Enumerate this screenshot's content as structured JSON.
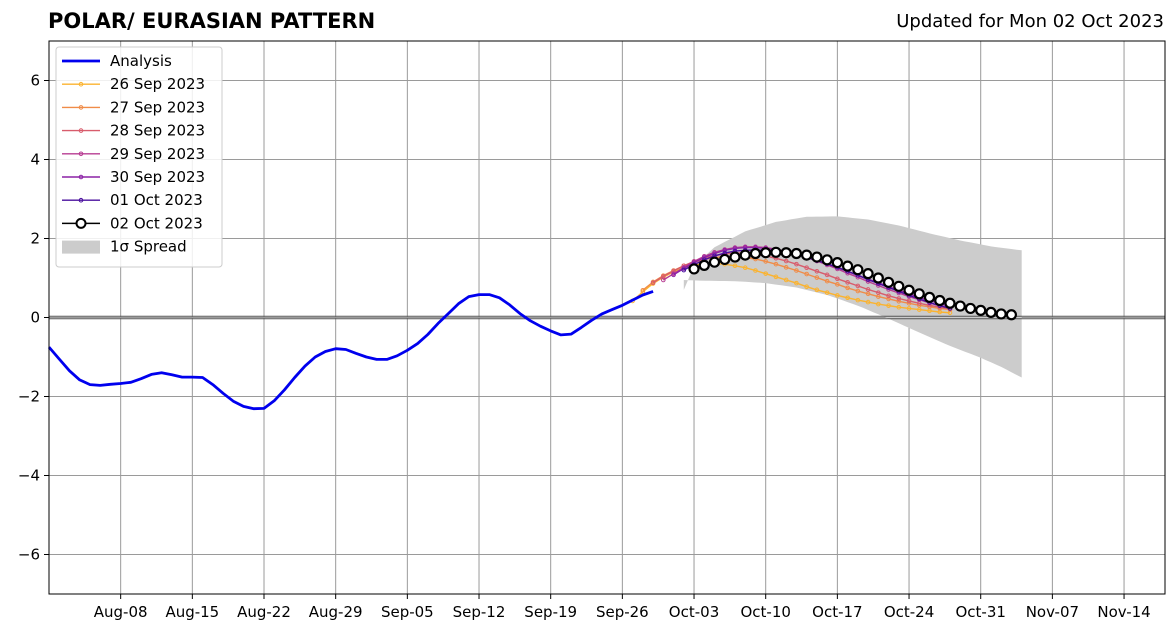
{
  "chart_data": {
    "type": "line",
    "title": "POLAR/ EURASIAN  PATTERN",
    "subtitle": "Updated for Mon 02 Oct 2023",
    "xlabel": "",
    "ylabel": "",
    "x_range": [
      "2023-08-01",
      "2023-11-18"
    ],
    "ylim": [
      -7,
      7
    ],
    "y_ticks": [
      -6,
      -4,
      -2,
      0,
      2,
      4,
      6
    ],
    "y_tick_labels": [
      "−6",
      "−4",
      "−2",
      "0",
      "2",
      "4",
      "6"
    ],
    "x_ticks": [
      "2023-08-08",
      "2023-08-15",
      "2023-08-22",
      "2023-08-29",
      "2023-09-05",
      "2023-09-12",
      "2023-09-19",
      "2023-09-26",
      "2023-10-03",
      "2023-10-10",
      "2023-10-17",
      "2023-10-24",
      "2023-10-31",
      "2023-11-07",
      "2023-11-14"
    ],
    "x_tick_labels": [
      "Aug-08",
      "Aug-15",
      "Aug-22",
      "Aug-29",
      "Sep-05",
      "Sep-12",
      "Sep-19",
      "Sep-26",
      "Oct-03",
      "Oct-10",
      "Oct-17",
      "Oct-24",
      "Oct-31",
      "Nov-07",
      "Nov-14"
    ],
    "grid": true,
    "zero_line": true,
    "legend_position": "top-left",
    "analysis": {
      "name": "Analysis",
      "color": "#0000ee",
      "start_date": "2023-08-01",
      "values": [
        -0.75,
        -1.05,
        -1.35,
        -1.58,
        -1.7,
        -1.72,
        -1.69,
        -1.67,
        -1.64,
        -1.55,
        -1.44,
        -1.4,
        -1.45,
        -1.51,
        -1.51,
        -1.52,
        -1.7,
        -1.92,
        -2.12,
        -2.25,
        -2.31,
        -2.3,
        -2.11,
        -1.83,
        -1.52,
        -1.23,
        -1.0,
        -0.86,
        -0.79,
        -0.81,
        -0.91,
        -1.0,
        -1.06,
        -1.06,
        -0.97,
        -0.83,
        -0.66,
        -0.43,
        -0.15,
        0.1,
        0.35,
        0.53,
        0.58,
        0.58,
        0.5,
        0.32,
        0.1,
        -0.08,
        -0.22,
        -0.34,
        -0.44,
        -0.42,
        -0.25,
        -0.07,
        0.09,
        0.2,
        0.31,
        0.44,
        0.57,
        0.66
      ]
    },
    "forecasts": [
      {
        "name": "26 Sep 2023",
        "color": "#fbb32f",
        "start_date": "2023-09-27",
        "values": [
          0.42,
          0.65,
          0.86,
          1.02,
          1.16,
          1.26,
          1.33,
          1.36,
          1.37,
          1.35,
          1.31,
          1.26,
          1.19,
          1.11,
          1.03,
          0.95,
          0.87,
          0.78,
          0.7,
          0.63,
          0.56,
          0.5,
          0.44,
          0.39,
          0.34,
          0.3,
          0.26,
          0.23,
          0.2,
          0.17,
          0.14,
          0.12
        ]
      },
      {
        "name": "27 Sep 2023",
        "color": "#f08c48",
        "start_date": "2023-09-28",
        "values": [
          0.69,
          0.9,
          1.06,
          1.19,
          1.31,
          1.4,
          1.47,
          1.52,
          1.54,
          1.54,
          1.52,
          1.48,
          1.42,
          1.35,
          1.27,
          1.19,
          1.1,
          1.01,
          0.92,
          0.84,
          0.75,
          0.67,
          0.6,
          0.53,
          0.47,
          0.41,
          0.36,
          0.31,
          0.27,
          0.23,
          0.2
        ]
      },
      {
        "name": "28 Sep 2023",
        "color": "#d85c6c",
        "start_date": "2023-09-29",
        "values": [
          0.88,
          1.04,
          1.18,
          1.31,
          1.42,
          1.51,
          1.57,
          1.61,
          1.63,
          1.63,
          1.6,
          1.56,
          1.5,
          1.43,
          1.35,
          1.26,
          1.17,
          1.08,
          0.98,
          0.89,
          0.8,
          0.71,
          0.63,
          0.55,
          0.48,
          0.42,
          0.36,
          0.31,
          0.26,
          0.22
        ]
      },
      {
        "name": "29 Sep 2023",
        "color": "#b73c92",
        "start_date": "2023-09-30",
        "values": [
          0.95,
          1.11,
          1.27,
          1.42,
          1.55,
          1.65,
          1.72,
          1.77,
          1.79,
          1.79,
          1.77,
          1.73,
          1.67,
          1.6,
          1.52,
          1.43,
          1.33,
          1.23,
          1.12,
          1.02,
          0.91,
          0.81,
          0.71,
          0.62,
          0.53,
          0.45,
          0.37,
          0.3,
          0.24
        ]
      },
      {
        "name": "30 Sep 2023",
        "color": "#8c22a6",
        "start_date": "2023-10-01",
        "values": [
          1.08,
          1.24,
          1.39,
          1.52,
          1.62,
          1.7,
          1.75,
          1.77,
          1.77,
          1.75,
          1.71,
          1.66,
          1.6,
          1.53,
          1.45,
          1.36,
          1.27,
          1.17,
          1.07,
          0.97,
          0.88,
          0.78,
          0.69,
          0.6,
          0.51,
          0.43,
          0.35,
          0.28
        ]
      },
      {
        "name": "01 Oct 2023",
        "color": "#4a0f9e",
        "start_date": "2023-10-02",
        "values": [
          1.2,
          1.34,
          1.46,
          1.56,
          1.63,
          1.68,
          1.7,
          1.71,
          1.7,
          1.68,
          1.64,
          1.59,
          1.52,
          1.44,
          1.36,
          1.27,
          1.17,
          1.07,
          0.96,
          0.86,
          0.76,
          0.66,
          0.56,
          0.47,
          0.38,
          0.3,
          0.23
        ]
      },
      {
        "name": "02 Oct 2023",
        "color": "#000000",
        "start_date": "2023-10-03",
        "values": [
          1.23,
          1.32,
          1.4,
          1.47,
          1.53,
          1.58,
          1.62,
          1.64,
          1.65,
          1.64,
          1.62,
          1.58,
          1.53,
          1.46,
          1.39,
          1.3,
          1.21,
          1.11,
          1.0,
          0.89,
          0.79,
          0.69,
          0.6,
          0.51,
          0.43,
          0.36,
          0.29,
          0.23,
          0.18,
          0.13,
          0.09,
          0.07
        ]
      }
    ],
    "spread": {
      "name": "1σ Spread",
      "color": "#cccccc",
      "start_date": "2023-10-02",
      "end_date": "2023-11-04",
      "upper": [
        [
          0,
          0.7
        ],
        [
          1,
          1.3
        ],
        [
          3,
          1.78
        ],
        [
          6,
          2.18
        ],
        [
          9,
          2.42
        ],
        [
          12,
          2.55
        ],
        [
          15,
          2.56
        ],
        [
          18,
          2.48
        ],
        [
          21,
          2.33
        ],
        [
          24,
          2.13
        ],
        [
          27,
          1.95
        ],
        [
          30,
          1.8
        ],
        [
          33,
          1.7
        ]
      ],
      "lower": [
        [
          0,
          0.95
        ],
        [
          2,
          0.93
        ],
        [
          5,
          0.92
        ],
        [
          8,
          0.87
        ],
        [
          11,
          0.76
        ],
        [
          14,
          0.57
        ],
        [
          17,
          0.3
        ],
        [
          20,
          -0.03
        ],
        [
          23,
          -0.38
        ],
        [
          26,
          -0.72
        ],
        [
          29,
          -1.02
        ],
        [
          31,
          -1.25
        ],
        [
          33,
          -1.52
        ]
      ]
    }
  }
}
